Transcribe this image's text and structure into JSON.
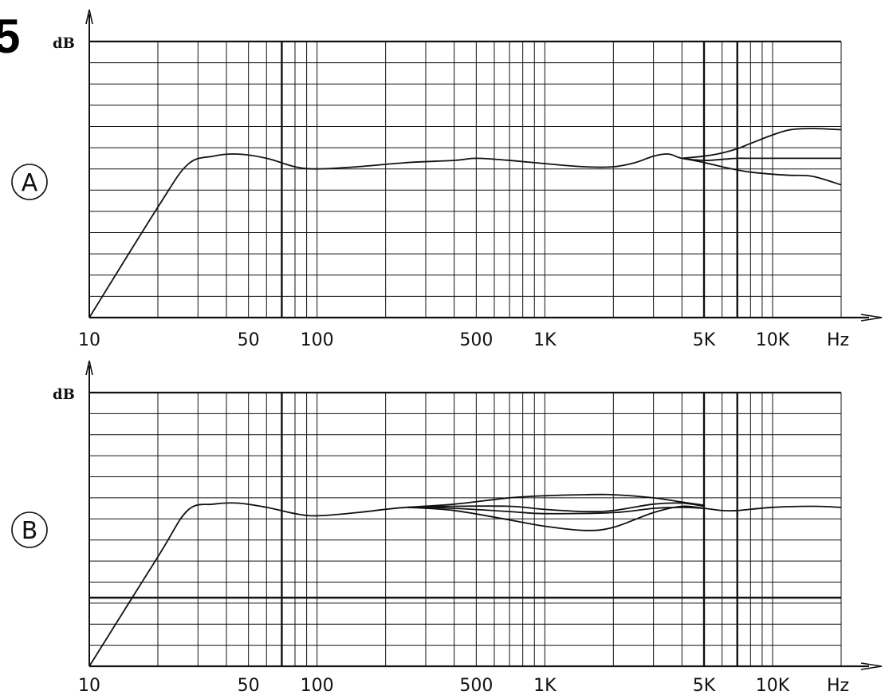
{
  "figure": {
    "number": "5",
    "x_unit": "Hz",
    "y_unit": "dB"
  },
  "chart_data": [
    {
      "type": "line",
      "panel_label": "A",
      "x_scale": "log",
      "xlim": [
        10,
        20000
      ],
      "x_ticks": [
        10,
        50,
        100,
        500,
        1000,
        5000,
        10000
      ],
      "x_tick_labels": [
        "10",
        "50",
        "100",
        "500",
        "1K",
        "5K",
        "10K"
      ],
      "xlabel": "Hz",
      "ylabel": "dB",
      "y_grid_divisions": 13,
      "ylim": [
        0,
        13
      ],
      "grid": true,
      "series": [
        {
          "x": [
            10,
            20,
            27,
            35,
            45,
            60,
            80,
            100,
            150,
            250,
            400,
            500,
            700,
            1000,
            1500,
            2000,
            2500,
            3000,
            3500,
            4000,
            5000,
            6000,
            7000,
            8000,
            10000,
            12000,
            15000,
            20000
          ],
          "values": [
            0.0,
            5.2,
            7.2,
            7.6,
            7.7,
            7.5,
            7.1,
            7.0,
            7.1,
            7.3,
            7.4,
            7.5,
            7.4,
            7.25,
            7.1,
            7.1,
            7.3,
            7.6,
            7.7,
            7.5,
            7.4,
            7.45,
            7.5,
            7.5,
            7.5,
            7.5,
            7.5,
            7.5
          ]
        },
        {
          "x": [
            4000,
            5000,
            6000,
            7000,
            8000,
            10000,
            12000,
            15000,
            20000
          ],
          "values": [
            7.5,
            7.6,
            7.75,
            7.95,
            8.2,
            8.6,
            8.85,
            8.9,
            8.85
          ]
        },
        {
          "x": [
            4000,
            5000,
            6000,
            7000,
            8000,
            10000,
            12000,
            15000,
            20000
          ],
          "values": [
            7.5,
            7.3,
            7.1,
            6.95,
            6.85,
            6.75,
            6.7,
            6.65,
            6.25
          ]
        }
      ]
    },
    {
      "type": "line",
      "panel_label": "B",
      "x_scale": "log",
      "xlim": [
        10,
        20000
      ],
      "x_ticks": [
        10,
        50,
        100,
        500,
        1000,
        5000,
        10000
      ],
      "x_tick_labels": [
        "10",
        "50",
        "100",
        "500",
        "1K",
        "5K",
        "10K"
      ],
      "xlabel": "Hz",
      "ylabel": "dB",
      "y_grid_divisions": 13,
      "ylim": [
        0,
        13
      ],
      "grid": true,
      "series": [
        {
          "x": [
            10,
            20,
            27,
            35,
            45,
            60,
            80,
            100,
            150,
            250,
            400,
            700,
            1000,
            2000,
            3000,
            4000,
            5000,
            6000,
            7000,
            10000,
            15000,
            20000
          ],
          "values": [
            0.0,
            5.2,
            7.4,
            7.7,
            7.75,
            7.55,
            7.25,
            7.15,
            7.3,
            7.55,
            7.5,
            7.35,
            7.25,
            7.3,
            7.5,
            7.55,
            7.5,
            7.4,
            7.4,
            7.55,
            7.6,
            7.55
          ]
        },
        {
          "x": [
            250,
            400,
            700,
            1000,
            1500,
            2000,
            3000,
            4000,
            5000
          ],
          "values": [
            7.55,
            7.7,
            8.0,
            8.1,
            8.15,
            8.15,
            8.0,
            7.8,
            7.65
          ]
        },
        {
          "x": [
            250,
            400,
            700,
            1000,
            1500,
            2000,
            3000,
            4000,
            5000
          ],
          "values": [
            7.55,
            7.4,
            6.95,
            6.65,
            6.45,
            6.6,
            7.3,
            7.6,
            7.5
          ]
        },
        {
          "x": [
            250,
            400,
            700,
            1000,
            1500,
            2000,
            3000,
            4000,
            5000
          ],
          "values": [
            7.55,
            7.6,
            7.6,
            7.45,
            7.35,
            7.4,
            7.7,
            7.75,
            7.6
          ]
        }
      ]
    }
  ]
}
